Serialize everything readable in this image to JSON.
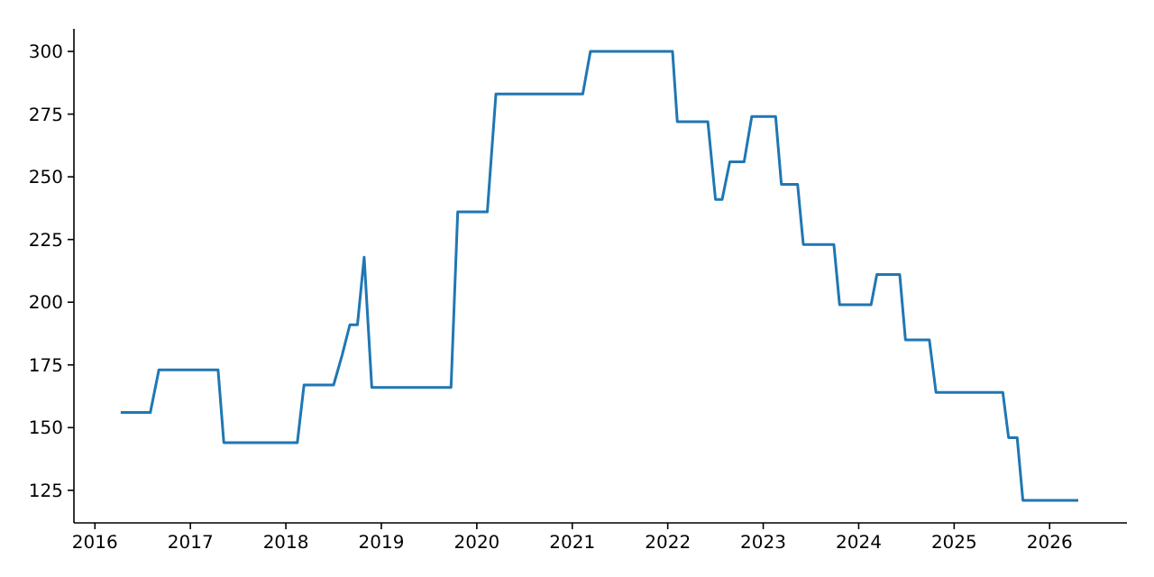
{
  "chart_data": {
    "type": "line",
    "xlim": [
      2015.78,
      2026.81
    ],
    "ylim": [
      112,
      309
    ],
    "xticks": [
      2016,
      2017,
      2018,
      2019,
      2020,
      2021,
      2022,
      2023,
      2024,
      2025,
      2026
    ],
    "yticks": [
      125,
      150,
      175,
      200,
      225,
      250,
      275,
      300
    ],
    "grid": false,
    "marker": "none",
    "line_style": "solid",
    "series": [
      {
        "color": "#1f77b4",
        "x": [
          2016.27,
          2016.58,
          2016.67,
          2017.29,
          2017.35,
          2018.12,
          2018.19,
          2018.5,
          2018.59,
          2018.67,
          2018.75,
          2018.82,
          2018.9,
          2019.73,
          2019.8,
          2020.11,
          2020.2,
          2021.11,
          2021.19,
          2022.05,
          2022.1,
          2022.42,
          2022.5,
          2022.57,
          2022.65,
          2022.8,
          2022.88,
          2023.13,
          2023.19,
          2023.36,
          2023.42,
          2023.74,
          2023.8,
          2024.13,
          2024.19,
          2024.43,
          2024.49,
          2024.74,
          2024.81,
          2025.51,
          2025.57,
          2025.66,
          2025.72,
          2026.3
        ],
        "values": [
          156,
          156,
          173,
          173,
          144,
          144,
          167,
          167,
          179,
          191,
          191,
          218,
          166,
          166,
          236,
          236,
          283,
          283,
          300,
          300,
          272,
          272,
          241,
          241,
          256,
          256,
          274,
          274,
          247,
          247,
          223,
          223,
          199,
          199,
          211,
          211,
          185,
          185,
          164,
          164,
          146,
          146,
          121,
          121
        ]
      }
    ]
  }
}
